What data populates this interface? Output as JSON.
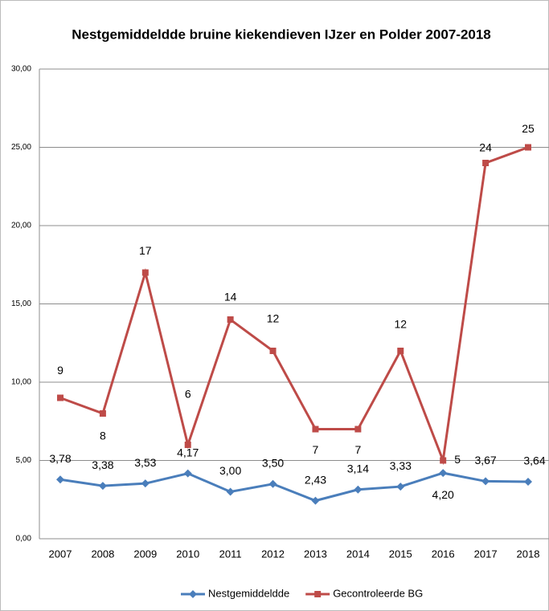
{
  "chart_data": {
    "type": "line",
    "title": "Nestgemiddeldde bruine kiekendieven IJzer en Polder 2007-2018",
    "categories": [
      "2007",
      "2008",
      "2009",
      "2010",
      "2011",
      "2012",
      "2013",
      "2014",
      "2015",
      "2016",
      "2017",
      "2018"
    ],
    "series": [
      {
        "name": "Nestgemiddeldde",
        "color": "#4a7ebb",
        "marker": "diamond",
        "values": [
          3.78,
          3.38,
          3.53,
          4.17,
          3.0,
          3.5,
          2.43,
          3.14,
          3.33,
          4.2,
          3.67,
          3.64
        ],
        "value_labels": [
          "3,78",
          "3,38",
          "3,53",
          "4,17",
          "3,00",
          "3,50",
          "2,43",
          "3,14",
          "3,33",
          "4,20",
          "3,67",
          "3,64"
        ]
      },
      {
        "name": "Gecontroleerde BG",
        "color": "#be4b48",
        "marker": "square",
        "values": [
          9,
          8,
          17,
          6,
          14,
          12,
          7,
          7,
          12,
          5,
          24,
          25
        ]
      }
    ],
    "ylim": [
      0,
      30
    ],
    "yticks": [
      {
        "value": 0,
        "label": "0,00"
      },
      {
        "value": 5,
        "label": "5,00"
      },
      {
        "value": 10,
        "label": "10,00"
      },
      {
        "value": 15,
        "label": "15,00"
      },
      {
        "value": 20,
        "label": "20,00"
      },
      {
        "value": 25,
        "label": "25,00"
      },
      {
        "value": 30,
        "label": "30,00"
      }
    ],
    "grid": true,
    "legend": "bottom"
  }
}
